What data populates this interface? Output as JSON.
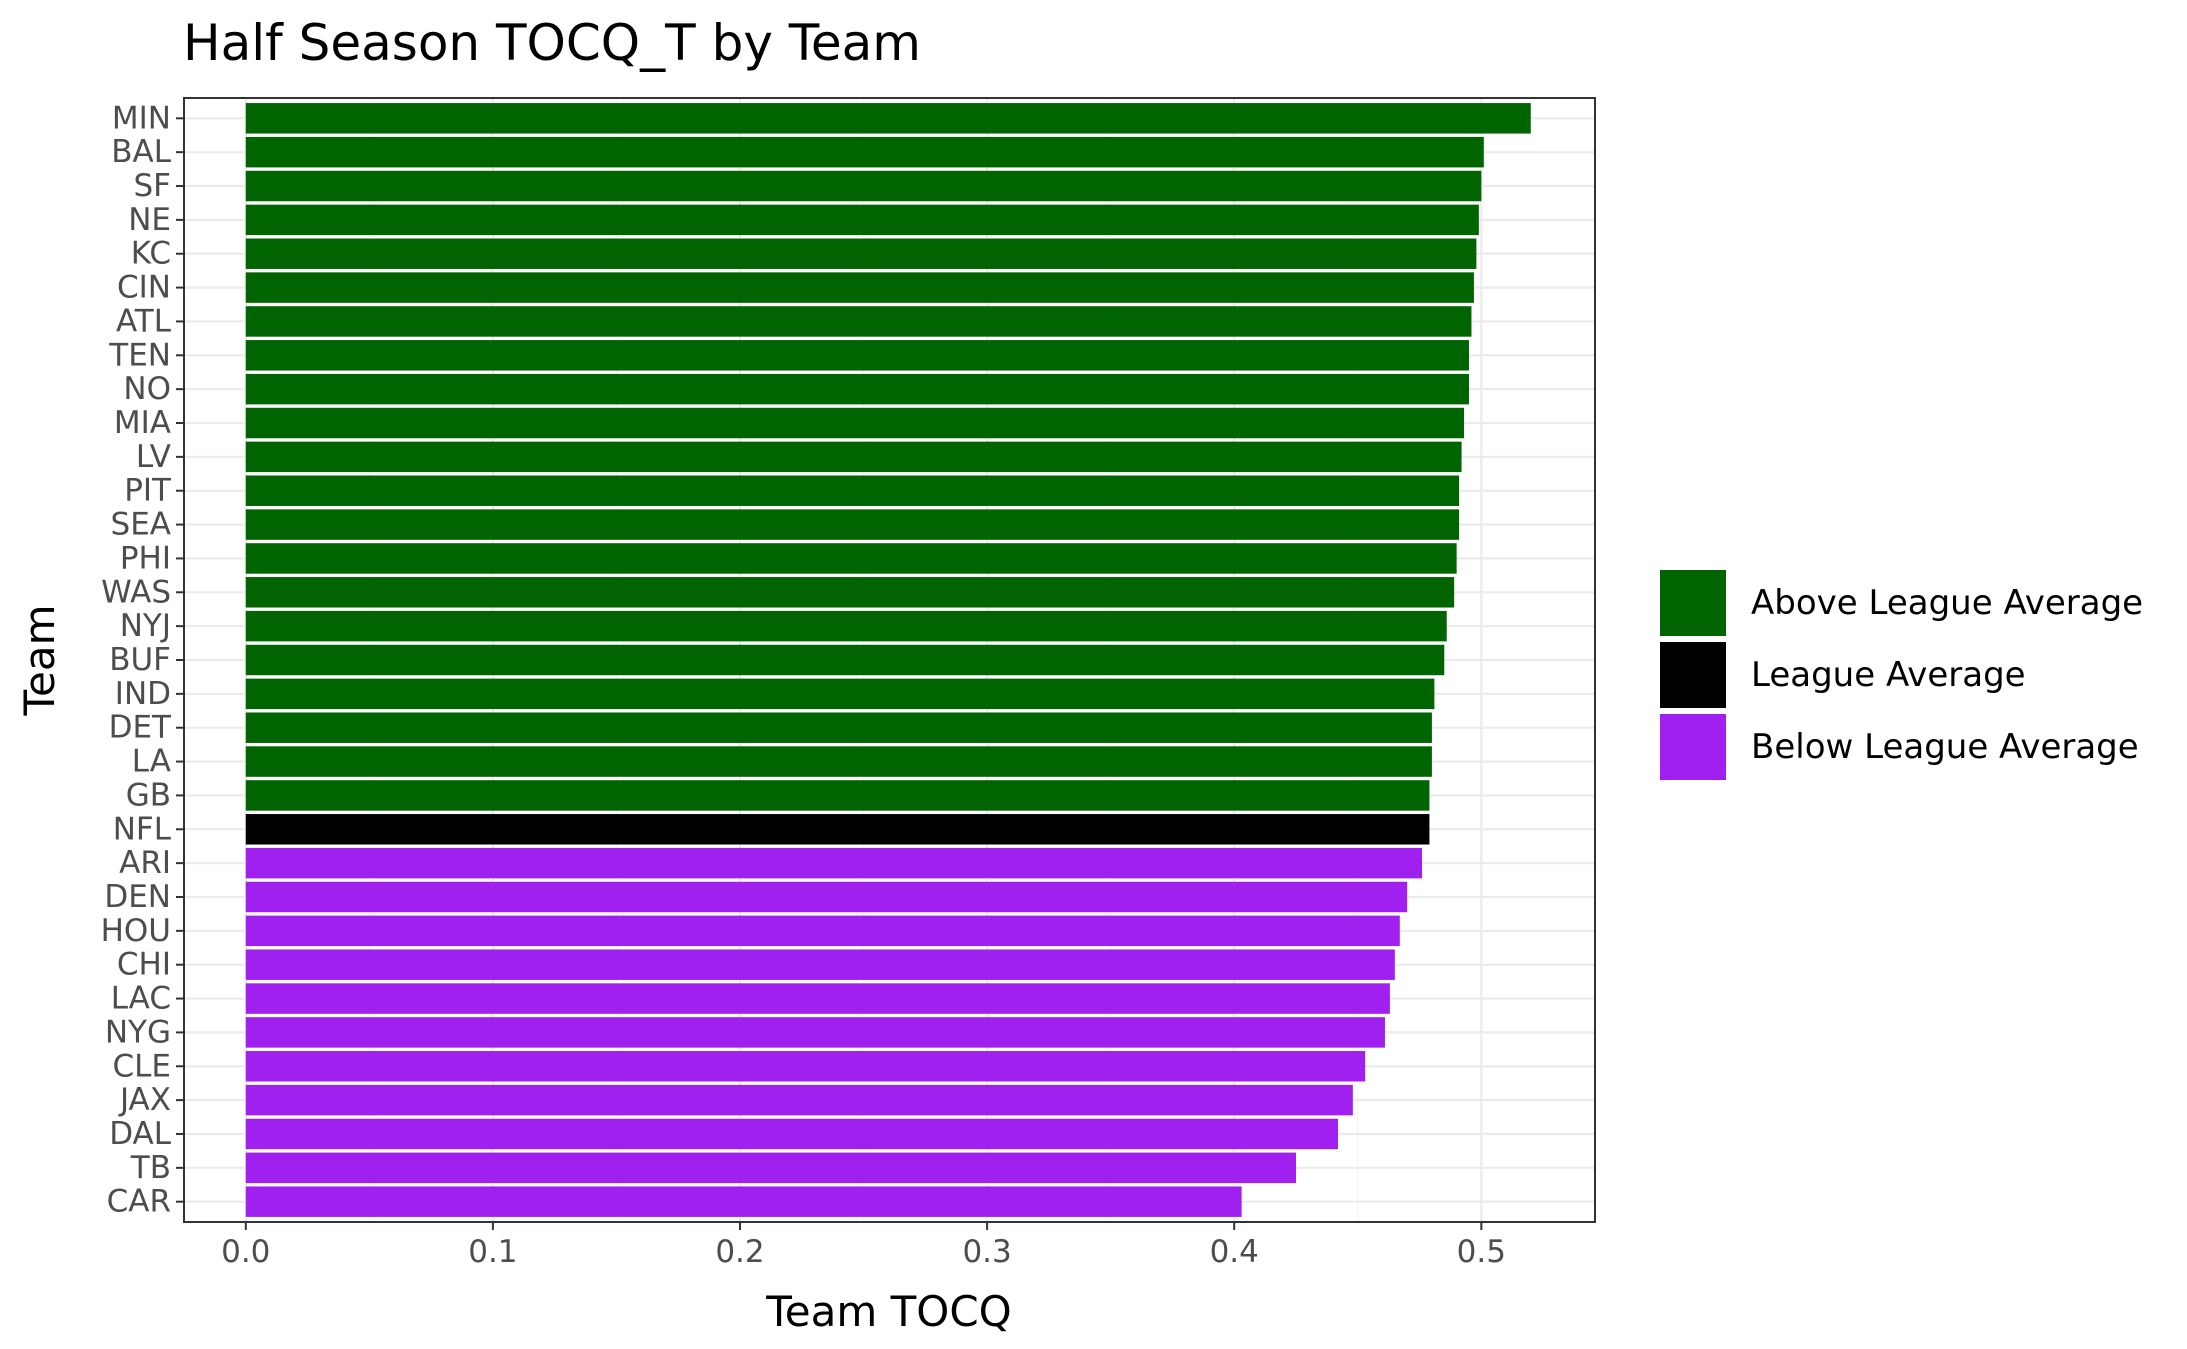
{
  "chart_data": {
    "type": "bar",
    "orientation": "horizontal",
    "title": "Half Season TOCQ_T by Team",
    "xlabel": "Team TOCQ",
    "ylabel": "Team",
    "xlim": [
      -0.025,
      0.546
    ],
    "xticks": [
      0.0,
      0.1,
      0.2,
      0.3,
      0.4,
      0.5
    ],
    "xtick_labels": [
      "0.0",
      "0.1",
      "0.2",
      "0.3",
      "0.4",
      "0.5"
    ],
    "grid": true,
    "legend_position": "right",
    "categories": [
      "MIN",
      "BAL",
      "SF",
      "NE",
      "KC",
      "CIN",
      "ATL",
      "TEN",
      "NO",
      "MIA",
      "LV",
      "PIT",
      "SEA",
      "PHI",
      "WAS",
      "NYJ",
      "BUF",
      "IND",
      "DET",
      "LA",
      "GB",
      "NFL",
      "ARI",
      "DEN",
      "HOU",
      "CHI",
      "LAC",
      "NYG",
      "CLE",
      "JAX",
      "DAL",
      "TB",
      "CAR"
    ],
    "values": [
      0.52,
      0.501,
      0.5,
      0.499,
      0.498,
      0.497,
      0.496,
      0.495,
      0.495,
      0.493,
      0.492,
      0.491,
      0.491,
      0.49,
      0.489,
      0.486,
      0.485,
      0.481,
      0.48,
      0.48,
      0.479,
      0.479,
      0.476,
      0.47,
      0.467,
      0.465,
      0.463,
      0.461,
      0.453,
      0.448,
      0.442,
      0.425,
      0.403
    ],
    "groups": [
      "Above League Average",
      "Above League Average",
      "Above League Average",
      "Above League Average",
      "Above League Average",
      "Above League Average",
      "Above League Average",
      "Above League Average",
      "Above League Average",
      "Above League Average",
      "Above League Average",
      "Above League Average",
      "Above League Average",
      "Above League Average",
      "Above League Average",
      "Above League Average",
      "Above League Average",
      "Above League Average",
      "Above League Average",
      "Above League Average",
      "Above League Average",
      "League Average",
      "Below League Average",
      "Below League Average",
      "Below League Average",
      "Below League Average",
      "Below League Average",
      "Below League Average",
      "Below League Average",
      "Below League Average",
      "Below League Average",
      "Below League Average",
      "Below League Average"
    ],
    "legend": [
      {
        "label": "Above League Average",
        "color": "#006400"
      },
      {
        "label": "League Average",
        "color": "#000000"
      },
      {
        "label": "Below League Average",
        "color": "#a020f0"
      }
    ]
  }
}
